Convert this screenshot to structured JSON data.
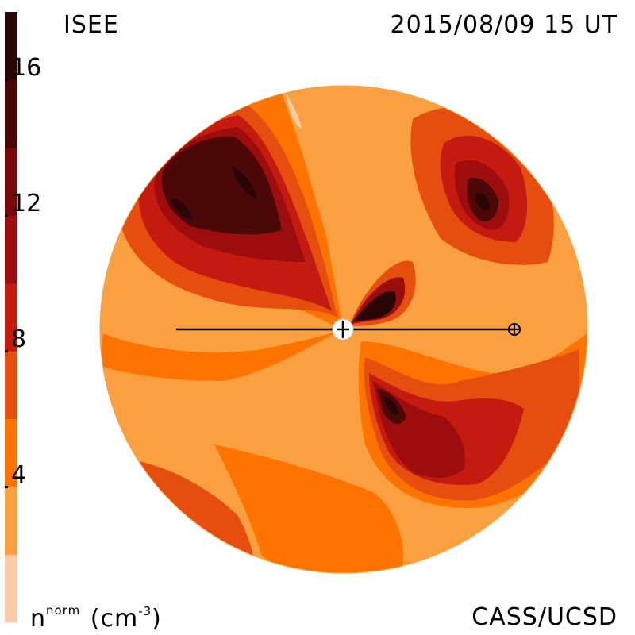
{
  "header": {
    "instrument": "ISEE",
    "timestamp": "2015/08/09 15 UT"
  },
  "footer": {
    "unit_symbol": "n",
    "unit_superscript": "norm",
    "unit_text_open": "(cm",
    "unit_exponent": "-3",
    "unit_text_close": ")",
    "credit": "CASS/UCSD"
  },
  "colorbar": {
    "tick_labels": [
      "16",
      "12",
      "8",
      "4"
    ],
    "tick_values": [
      16,
      12,
      8,
      4
    ],
    "range": [
      0,
      18
    ],
    "levels": [
      {
        "from": 0,
        "to": 2,
        "color": "#f9cba8"
      },
      {
        "from": 2,
        "to": 4,
        "color": "#fba040"
      },
      {
        "from": 4,
        "to": 6,
        "color": "#ff7400"
      },
      {
        "from": 6,
        "to": 8,
        "color": "#e54e0e"
      },
      {
        "from": 8,
        "to": 10,
        "color": "#c41a10"
      },
      {
        "from": 10,
        "to": 12,
        "color": "#9e0d0d"
      },
      {
        "from": 12,
        "to": 14,
        "color": "#780909"
      },
      {
        "from": 14,
        "to": 16,
        "color": "#4c0707"
      },
      {
        "from": 16,
        "to": 18,
        "color": "#2a0505"
      }
    ]
  },
  "map": {
    "sun_icon": "sun-icon",
    "earth_icon": "earth-icon"
  }
}
